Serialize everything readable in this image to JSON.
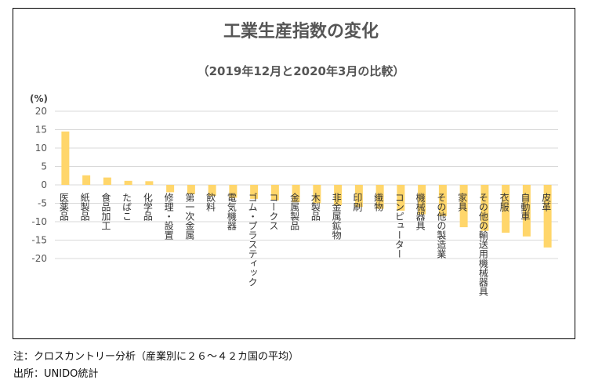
{
  "title": "工業生産指数の変化",
  "subtitle": "（2019年12月と2020年3月の比較）",
  "unit_label": "(%)",
  "notes": {
    "line1": "注：クロスカントリー分析（産業別に２６～４２カ国の平均）",
    "line2": "出所：UNIDO統計"
  },
  "colors": {
    "bar": "#FFD66B",
    "grid": "#D9D9D9",
    "axis_text": "#555555"
  },
  "chart_data": {
    "type": "bar",
    "title": "工業生産指数の変化",
    "subtitle": "（2019年12月と2020年3月の比較）",
    "ylabel": "(%)",
    "ylim": [
      -20,
      20
    ],
    "yticks": [
      20,
      15,
      10,
      5,
      0,
      -5,
      -10,
      -15,
      -20
    ],
    "grid": true,
    "categories": [
      "医薬品",
      "紙製品",
      "食品加工",
      "たばこ",
      "化学品",
      "修理・設置",
      "第一次金属",
      "飲料",
      "電気機器",
      "ゴム・プラスティック",
      "コークス",
      "金属製品",
      "木製品",
      "非金属鉱物",
      "印刷",
      "織物",
      "コンピューター",
      "機械器具",
      "その他の製造業",
      "家具",
      "その他の輸送用機械器具",
      "衣服",
      "自動車",
      "皮革"
    ],
    "values": [
      14.5,
      2.6,
      2.0,
      1.1,
      1.0,
      -2.0,
      -2.5,
      -3.0,
      -3.5,
      -3.8,
      -4.2,
      -4.7,
      -5.0,
      -5.5,
      -6.0,
      -6.5,
      -7.0,
      -8.0,
      -8.5,
      -11.5,
      -12.5,
      -13.0,
      -14.0,
      -17.0
    ]
  }
}
